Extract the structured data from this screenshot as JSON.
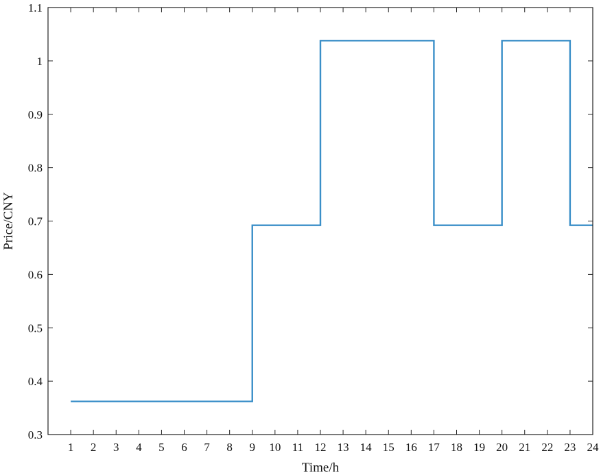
{
  "chart_data": {
    "type": "line",
    "step": "post",
    "xlabel": "Time/h",
    "ylabel": "Price/CNY",
    "xlim": [
      0,
      24
    ],
    "ylim": [
      0.3,
      1.1
    ],
    "x_ticks": [
      1,
      2,
      3,
      4,
      5,
      6,
      7,
      8,
      9,
      10,
      11,
      12,
      13,
      14,
      15,
      16,
      17,
      18,
      19,
      20,
      21,
      22,
      23,
      24
    ],
    "x_tick_labels": [
      "1",
      "2",
      "3",
      "4",
      "5",
      "6",
      "7",
      "8",
      "9",
      "10",
      "11",
      "12",
      "13",
      "14",
      "15",
      "16",
      "17",
      "18",
      "19",
      "20",
      "21",
      "22",
      "23",
      "24"
    ],
    "y_ticks": [
      0.3,
      0.4,
      0.5,
      0.6,
      0.7,
      0.8,
      0.9,
      1.0,
      1.1
    ],
    "y_tick_labels": [
      "0.3",
      "0.4",
      "0.5",
      "0.6",
      "0.7",
      "0.8",
      "0.9",
      "1",
      "1.1"
    ],
    "grid": false,
    "legend": "none",
    "series": [
      {
        "color": "#3a8fc8",
        "x": [
          1,
          9,
          12,
          17,
          20,
          23,
          24
        ],
        "y": [
          0.362,
          0.692,
          1.038,
          0.692,
          1.038,
          0.692,
          0.692
        ]
      }
    ]
  }
}
